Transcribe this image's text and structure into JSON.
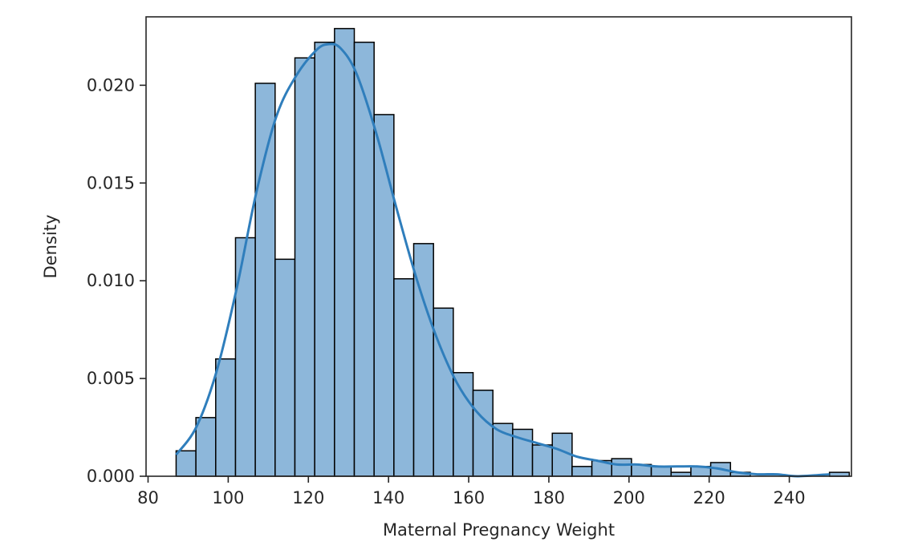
{
  "chart_data": {
    "type": "bar",
    "xlabel": "Maternal Pregnancy Weight",
    "ylabel": "Density",
    "xlim": [
      79.5,
      255.5
    ],
    "ylim": [
      0,
      0.0235
    ],
    "xticks": [
      80,
      100,
      120,
      140,
      160,
      180,
      200,
      220,
      240
    ],
    "xtick_labels": [
      "80",
      "100",
      "120",
      "140",
      "160",
      "180",
      "200",
      "220",
      "240"
    ],
    "yticks": [
      0.0,
      0.005,
      0.01,
      0.015,
      0.02
    ],
    "ytick_labels": [
      "0.000",
      "0.005",
      "0.010",
      "0.015",
      "0.020"
    ],
    "grid": false,
    "bins": {
      "start": 87,
      "width": 4.94,
      "density": [
        0.0013,
        0.003,
        0.006,
        0.0122,
        0.0201,
        0.0111,
        0.0214,
        0.0222,
        0.0229,
        0.0222,
        0.0185,
        0.0101,
        0.0119,
        0.0086,
        0.0053,
        0.0044,
        0.0027,
        0.0024,
        0.0016,
        0.0022,
        0.0005,
        0.0008,
        0.0009,
        0.0006,
        0.0005,
        0.0002,
        0.0005,
        0.0007,
        0.0002,
        0.0,
        0.0,
        0.0,
        0.0,
        0.0002
      ]
    },
    "kde": {
      "x": [
        87,
        92,
        97,
        102,
        107,
        112,
        117,
        122,
        125,
        128,
        132,
        137,
        142,
        147,
        152,
        157,
        162,
        167,
        172,
        177,
        182,
        187,
        192,
        197,
        202,
        207,
        212,
        217,
        222,
        227,
        232,
        237,
        242,
        250
      ],
      "y": [
        0.0011,
        0.0025,
        0.0053,
        0.0095,
        0.0145,
        0.0184,
        0.0205,
        0.0218,
        0.0221,
        0.0219,
        0.0206,
        0.0175,
        0.0137,
        0.0101,
        0.0071,
        0.0048,
        0.0033,
        0.0024,
        0.002,
        0.0017,
        0.0014,
        0.001,
        0.0008,
        0.0006,
        0.0006,
        0.0005,
        0.0005,
        0.0005,
        0.0004,
        0.0002,
        0.0001,
        0.0001,
        0.0,
        0.0001
      ]
    },
    "colors": {
      "bar_fill": "#8db7da",
      "bar_edge": "#000000",
      "kde_line": "#2f7ebc",
      "axes": "#262626"
    }
  }
}
